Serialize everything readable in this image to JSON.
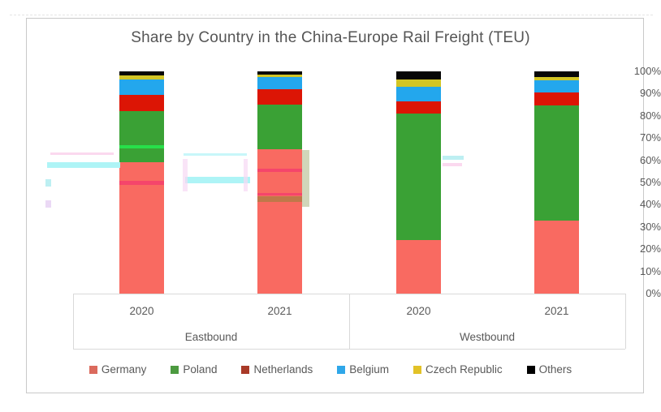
{
  "title": "Share by Country in the China-Europe Rail Freight (TEU)",
  "chart_data": {
    "type": "bar",
    "subtype": "stacked-100-percent",
    "title": "Share by Country in the China-Europe Rail Freight (TEU)",
    "groups": [
      {
        "label": "Eastbound",
        "years": [
          "2020",
          "2021"
        ]
      },
      {
        "label": "Westbound",
        "years": [
          "2020",
          "2021"
        ]
      }
    ],
    "categories": [
      "Eastbound 2020",
      "Eastbound 2021",
      "Westbound 2020",
      "Westbound 2021"
    ],
    "series": [
      {
        "name": "Germany",
        "color": "#F96A61",
        "legend_color": "#DB6A5D",
        "values": [
          59,
          65,
          24,
          33
        ]
      },
      {
        "name": "Poland",
        "color": "#3AA135",
        "legend_color": "#4C9A40",
        "values": [
          23,
          20,
          57,
          51.5
        ]
      },
      {
        "name": "Netherlands",
        "color": "#DC1505",
        "legend_color": "#A93A28",
        "values": [
          7.5,
          7,
          5.5,
          6
        ]
      },
      {
        "name": "Belgium",
        "color": "#23A7ED",
        "legend_color": "#2FA7E9",
        "values": [
          7,
          5.5,
          6.5,
          5.5
        ]
      },
      {
        "name": "Czech Republic",
        "color": "#D2C525",
        "legend_color": "#E2C227",
        "values": [
          1.5,
          1,
          3.5,
          1.5
        ]
      },
      {
        "name": "Others",
        "color": "#070707",
        "legend_color": "#000000",
        "values": [
          2,
          1.5,
          3.5,
          2.5
        ]
      }
    ],
    "y_axis": {
      "min": 0,
      "max": 100,
      "unit": "%",
      "ticks": [
        "100%",
        "90%",
        "80%",
        "70%",
        "60%",
        "50%",
        "40%",
        "30%",
        "20%",
        "10%",
        "0%"
      ]
    },
    "legend": {
      "position": "bottom",
      "labels": [
        "Germany",
        "Poland",
        "Netherlands",
        "Belgium",
        "Czech Republic",
        "Others"
      ]
    },
    "gridlines": false
  },
  "colors": {
    "text": "#595959",
    "frame_border": "#C9C9C9",
    "axis_line": "#D9D9D9",
    "background": "#FFFFFF"
  }
}
